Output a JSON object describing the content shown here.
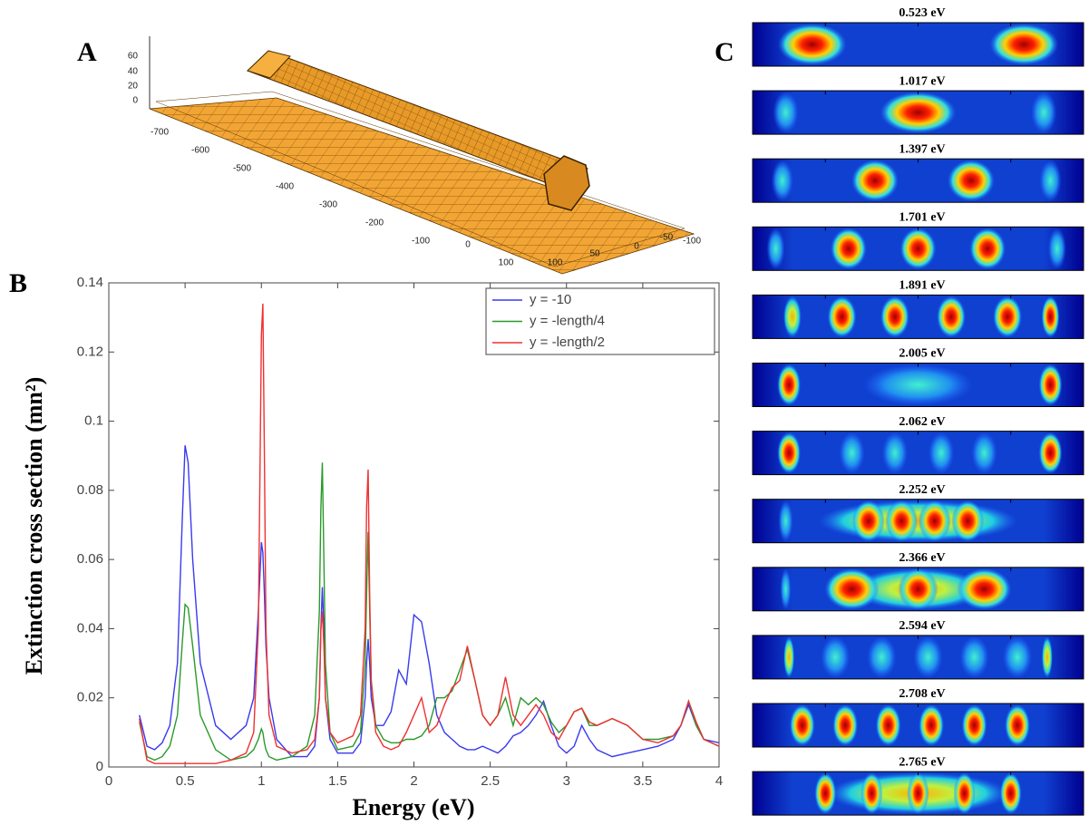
{
  "mesh_panel": {
    "label": "A",
    "z_ticks": [
      60,
      40,
      20,
      0
    ],
    "y_ticks": [
      -700,
      -600,
      -500,
      -400,
      -300,
      -200,
      -100,
      0,
      100
    ],
    "x_ticks": [
      100,
      50,
      0,
      -50,
      -100
    ]
  },
  "chart_data": {
    "type": "line",
    "label": "B",
    "xlabel": "Energy (eV)",
    "ylabel": "Extinction cross section (mn²)",
    "x": [
      0.2,
      0.25,
      0.3,
      0.35,
      0.4,
      0.45,
      0.48,
      0.5,
      0.52,
      0.55,
      0.6,
      0.7,
      0.8,
      0.9,
      0.95,
      0.98,
      1.0,
      1.01,
      1.02,
      1.03,
      1.05,
      1.1,
      1.2,
      1.3,
      1.35,
      1.38,
      1.39,
      1.4,
      1.41,
      1.42,
      1.45,
      1.5,
      1.6,
      1.65,
      1.68,
      1.69,
      1.7,
      1.71,
      1.72,
      1.75,
      1.8,
      1.85,
      1.9,
      1.95,
      2.0,
      2.05,
      2.1,
      2.15,
      2.2,
      2.25,
      2.3,
      2.35,
      2.4,
      2.45,
      2.5,
      2.55,
      2.6,
      2.65,
      2.7,
      2.75,
      2.8,
      2.85,
      2.9,
      2.95,
      3.0,
      3.05,
      3.1,
      3.15,
      3.2,
      3.3,
      3.4,
      3.5,
      3.6,
      3.7,
      3.75,
      3.8,
      3.85,
      3.9,
      4.0
    ],
    "series": [
      {
        "name": "y = -10",
        "color": "#3a3af0",
        "values": [
          0.015,
          0.006,
          0.005,
          0.007,
          0.012,
          0.03,
          0.07,
          0.093,
          0.088,
          0.06,
          0.03,
          0.012,
          0.008,
          0.012,
          0.02,
          0.045,
          0.065,
          0.062,
          0.05,
          0.035,
          0.02,
          0.008,
          0.003,
          0.003,
          0.006,
          0.02,
          0.04,
          0.052,
          0.04,
          0.02,
          0.008,
          0.004,
          0.004,
          0.007,
          0.02,
          0.03,
          0.037,
          0.03,
          0.02,
          0.012,
          0.012,
          0.016,
          0.028,
          0.024,
          0.044,
          0.042,
          0.03,
          0.015,
          0.01,
          0.008,
          0.006,
          0.005,
          0.005,
          0.006,
          0.005,
          0.004,
          0.006,
          0.009,
          0.01,
          0.012,
          0.015,
          0.019,
          0.012,
          0.006,
          0.004,
          0.006,
          0.012,
          0.008,
          0.005,
          0.003,
          0.004,
          0.005,
          0.006,
          0.008,
          0.012,
          0.018,
          0.012,
          0.008,
          0.007
        ]
      },
      {
        "name": "y = -length/4",
        "color": "#2a9a2a",
        "values": [
          0.013,
          0.003,
          0.002,
          0.003,
          0.006,
          0.015,
          0.035,
          0.047,
          0.046,
          0.035,
          0.015,
          0.005,
          0.002,
          0.003,
          0.005,
          0.008,
          0.011,
          0.01,
          0.007,
          0.005,
          0.003,
          0.002,
          0.003,
          0.006,
          0.015,
          0.045,
          0.075,
          0.088,
          0.06,
          0.03,
          0.01,
          0.005,
          0.006,
          0.01,
          0.03,
          0.05,
          0.068,
          0.045,
          0.025,
          0.012,
          0.008,
          0.007,
          0.007,
          0.008,
          0.008,
          0.009,
          0.012,
          0.02,
          0.02,
          0.022,
          0.028,
          0.034,
          0.025,
          0.015,
          0.012,
          0.015,
          0.02,
          0.012,
          0.02,
          0.018,
          0.02,
          0.018,
          0.013,
          0.01,
          0.012,
          0.016,
          0.017,
          0.012,
          0.012,
          0.014,
          0.012,
          0.008,
          0.008,
          0.009,
          0.012,
          0.019,
          0.012,
          0.008,
          0.006
        ]
      },
      {
        "name": "y = -length/2",
        "color": "#f03030",
        "values": [
          0.014,
          0.002,
          0.001,
          0.001,
          0.001,
          0.001,
          0.001,
          0.001,
          0.001,
          0.001,
          0.001,
          0.001,
          0.002,
          0.004,
          0.01,
          0.04,
          0.125,
          0.134,
          0.09,
          0.04,
          0.015,
          0.006,
          0.004,
          0.005,
          0.008,
          0.02,
          0.04,
          0.045,
          0.035,
          0.02,
          0.01,
          0.007,
          0.009,
          0.015,
          0.04,
          0.075,
          0.086,
          0.05,
          0.025,
          0.01,
          0.006,
          0.005,
          0.006,
          0.01,
          0.015,
          0.02,
          0.01,
          0.012,
          0.018,
          0.023,
          0.025,
          0.035,
          0.025,
          0.015,
          0.012,
          0.015,
          0.026,
          0.015,
          0.012,
          0.015,
          0.018,
          0.015,
          0.01,
          0.008,
          0.012,
          0.016,
          0.017,
          0.013,
          0.012,
          0.014,
          0.012,
          0.008,
          0.007,
          0.009,
          0.012,
          0.019,
          0.013,
          0.008,
          0.006
        ]
      }
    ],
    "xlim": [
      0,
      4
    ],
    "ylim": [
      0,
      0.14
    ],
    "xticks": [
      0,
      0.5,
      1,
      1.5,
      2,
      2.5,
      3,
      3.5,
      4
    ],
    "yticks": [
      0,
      0.02,
      0.04,
      0.06,
      0.08,
      0.1,
      0.12,
      0.14
    ],
    "legend": "upper right"
  },
  "mode_maps": {
    "label": "C",
    "energies": [
      "0.523 eV",
      "1.017 eV",
      "1.397 eV",
      "1.701 eV",
      "1.891 eV",
      "2.005 eV",
      "2.062 eV",
      "2.252 eV",
      "2.366 eV",
      "2.594 eV",
      "2.708 eV",
      "2.765 eV"
    ]
  }
}
